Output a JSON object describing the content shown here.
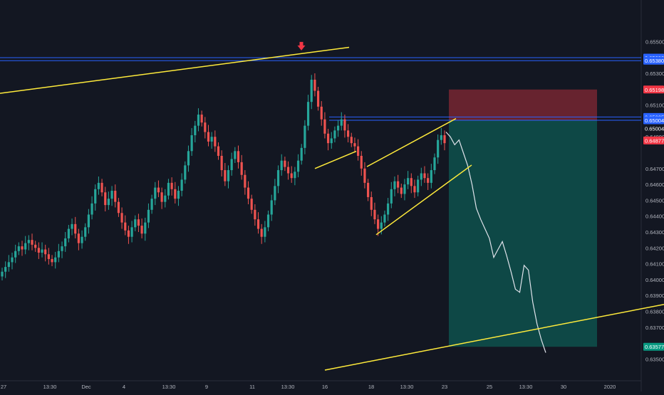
{
  "chart_data": {
    "type": "candlestick",
    "instrument_note": "",
    "x_ticks": [
      "27",
      "13:30",
      "Dec",
      "13:30",
      "4",
      "13:30",
      "9",
      "13:30",
      "11",
      "13:30",
      "16",
      "18",
      "13:30",
      "23",
      "25",
      "13:30",
      "30",
      "2020"
    ],
    "y_ticks": [
      "0.65500",
      "0.65300",
      "0.65100",
      "0.64900",
      "0.64700",
      "0.64600",
      "0.64500",
      "0.64400",
      "0.64300",
      "0.64200",
      "0.64100",
      "0.64000",
      "0.63900",
      "0.63800",
      "0.63700",
      "0.63500"
    ],
    "ylim": [
      0.6343,
      0.6565
    ],
    "price_tags": [
      {
        "label": "0.65399",
        "value": 0.65399,
        "color": "#2962ff"
      },
      {
        "label": "0.65380",
        "value": 0.6538,
        "color": "#2962ff"
      },
      {
        "label": "0.65198",
        "value": 0.65198,
        "color": "#f23645"
      },
      {
        "label": "0.65025",
        "value": 0.65025,
        "color": "#2962ff"
      },
      {
        "label": "0.65004",
        "value": 0.65004,
        "color": "#2962ff"
      },
      {
        "label": "0.65004",
        "value": 0.64953,
        "color": "#131722"
      },
      {
        "label": "0.64877",
        "value": 0.64877,
        "color": "#f23645"
      },
      {
        "label": "0.63577",
        "value": 0.63577,
        "color": "#089981"
      }
    ],
    "horizontal_levels": [
      0.65399,
      0.6538,
      0.65025,
      0.65004
    ],
    "candles_close": [
      0.6405,
      0.6408,
      0.6411,
      0.6414,
      0.6418,
      0.6421,
      0.6419,
      0.6423,
      0.6425,
      0.6422,
      0.642,
      0.6417,
      0.6419,
      0.6416,
      0.6413,
      0.6411,
      0.6414,
      0.6418,
      0.6421,
      0.6426,
      0.6432,
      0.6435,
      0.6429,
      0.6423,
      0.6427,
      0.6433,
      0.6441,
      0.6448,
      0.6457,
      0.6461,
      0.6455,
      0.6447,
      0.6451,
      0.6456,
      0.6449,
      0.6442,
      0.6436,
      0.6431,
      0.6427,
      0.6433,
      0.6438,
      0.6434,
      0.6429,
      0.6436,
      0.6444,
      0.6451,
      0.6458,
      0.6455,
      0.6449,
      0.6453,
      0.6461,
      0.6457,
      0.6451,
      0.6456,
      0.6463,
      0.6472,
      0.6481,
      0.6491,
      0.6497,
      0.6504,
      0.6499,
      0.6493,
      0.6487,
      0.649,
      0.6484,
      0.6478,
      0.6469,
      0.6462,
      0.6469,
      0.6476,
      0.6481,
      0.6474,
      0.6466,
      0.6458,
      0.6451,
      0.6444,
      0.6438,
      0.6432,
      0.6427,
      0.6433,
      0.6441,
      0.645,
      0.6459,
      0.6469,
      0.6475,
      0.6471,
      0.6467,
      0.6464,
      0.6468,
      0.6475,
      0.6483,
      0.6497,
      0.6512,
      0.6526,
      0.6519,
      0.6509,
      0.6501,
      0.6492,
      0.6486,
      0.6489,
      0.6494,
      0.6497,
      0.6501,
      0.6494,
      0.649,
      0.6486,
      0.6484,
      0.6478,
      0.647,
      0.6461,
      0.6452,
      0.6444,
      0.6438,
      0.6432,
      0.6436,
      0.6441,
      0.6448,
      0.6457,
      0.6462,
      0.6458,
      0.6454,
      0.646,
      0.6464,
      0.6459,
      0.6455,
      0.6463,
      0.6467,
      0.6464,
      0.6461,
      0.6469,
      0.6477,
      0.6488,
      0.6491,
      0.6486
    ],
    "forecast_path": [
      0.6493,
      0.649,
      0.6485,
      0.6488,
      0.648,
      0.6472,
      0.646,
      0.6445,
      0.6438,
      0.6432,
      0.6426,
      0.6414,
      0.6419,
      0.6424,
      0.6415,
      0.6405,
      0.6394,
      0.6392,
      0.6409,
      0.6406,
      0.6386,
      0.6372,
      0.6362,
      0.6354
    ],
    "trendlines": [
      {
        "from": [
          0,
          0.65174
        ],
        "to": [
          490,
          0.65464
        ]
      },
      {
        "from": [
          456,
          0.6343
        ],
        "to": [
          932,
          0.63844
        ]
      },
      {
        "from": [
          442,
          0.647
        ],
        "to": [
          500,
          0.64809
        ]
      },
      {
        "from": [
          515,
          0.64712
        ],
        "to": [
          640,
          0.65015
        ]
      },
      {
        "from": [
          528,
          0.64283
        ],
        "to": [
          662,
          0.64722
        ]
      }
    ],
    "position_tool": {
      "entry": 0.65004,
      "stop": 0.65198,
      "target": 0.63577,
      "x_start": 630,
      "x_end": 838
    },
    "signal_arrow": {
      "x": 423,
      "value": 0.65444
    }
  }
}
